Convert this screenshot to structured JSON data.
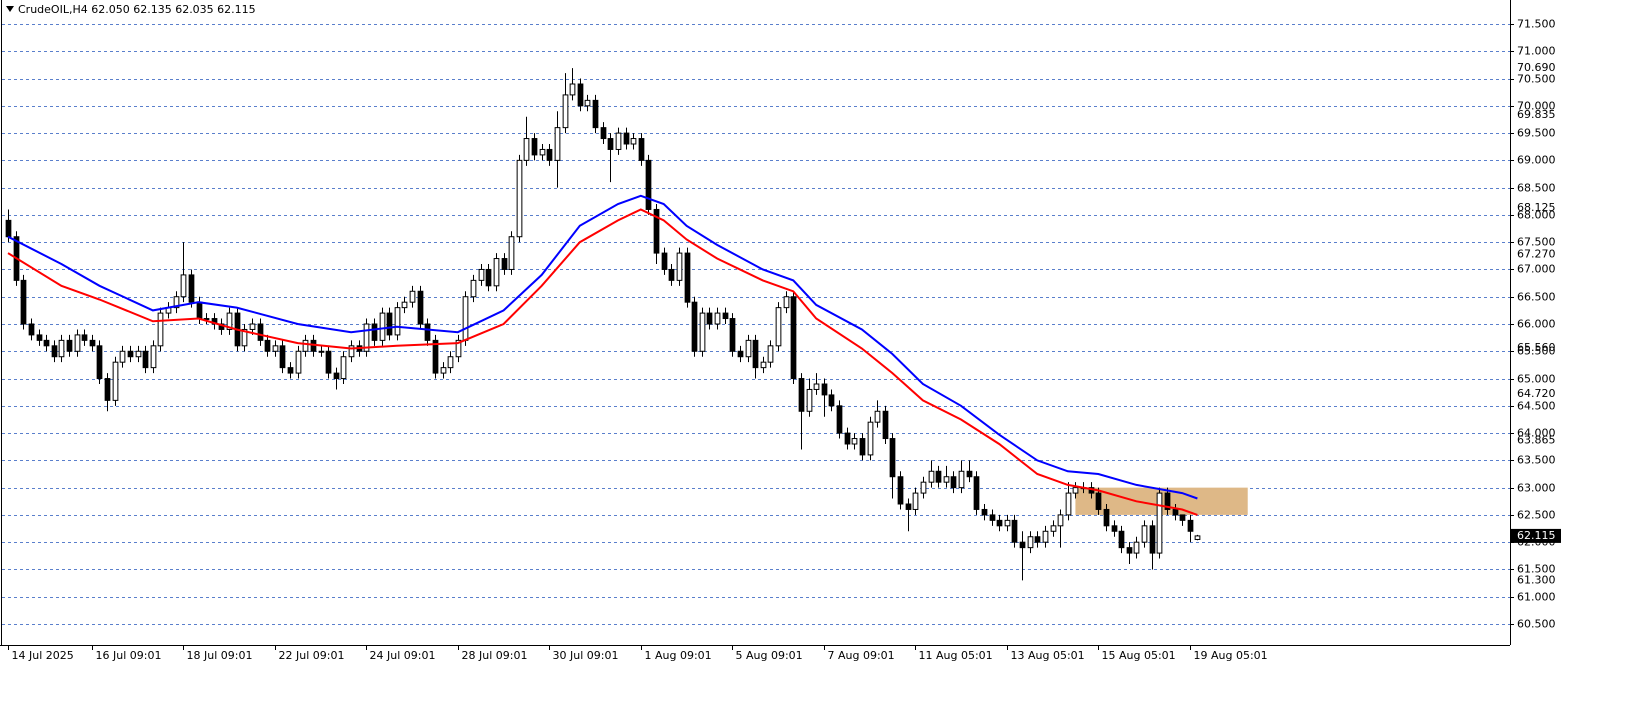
{
  "chart_data": {
    "type": "candlestick",
    "title": "CrudeOIL,H4 62.050 62.135 62.035 62.115",
    "open": [
      67.9,
      67.6,
      66.8,
      66.0,
      65.8,
      65.7,
      65.6,
      65.4,
      65.7,
      65.5,
      65.8,
      65.7,
      65.6,
      65.0,
      64.6,
      65.3,
      65.5,
      65.4,
      65.5,
      65.2,
      65.6,
      66.2,
      66.3,
      66.5,
      66.9,
      66.4,
      66.1,
      66.1,
      66.0,
      65.9,
      66.2,
      65.6,
      65.9,
      66.0,
      65.7,
      65.5,
      65.6,
      65.2,
      65.1,
      65.5,
      65.7,
      65.5,
      65.5,
      65.1,
      65.0,
      65.4,
      65.6,
      65.5,
      66.0,
      65.7,
      66.2,
      65.8,
      66.3,
      66.4,
      66.6,
      66.0,
      65.7,
      65.1,
      65.2,
      65.4,
      65.7,
      66.5,
      66.8,
      67.0,
      66.7,
      67.2,
      67.0,
      67.6,
      69.0,
      69.4,
      69.1,
      69.2,
      69.0,
      69.6,
      70.2,
      70.4,
      70.0,
      70.1,
      69.6,
      69.4,
      69.2,
      69.5,
      69.3,
      69.4,
      69.0,
      68.1,
      67.3,
      67.0,
      66.8,
      67.3,
      66.4,
      65.5,
      66.2,
      66.0,
      66.2,
      66.1,
      65.5,
      65.4,
      65.7,
      65.2,
      65.3,
      65.6,
      66.3,
      66.5,
      65.0,
      64.4,
      64.8,
      64.9,
      64.7,
      64.5,
      64.0,
      63.8,
      63.9,
      63.6,
      64.2,
      64.4,
      63.9,
      63.2,
      62.7,
      62.6,
      62.9,
      63.1,
      63.3,
      63.1,
      63.2,
      63.0,
      63.3,
      63.2,
      62.6,
      62.5,
      62.4,
      62.3,
      62.4,
      62.0,
      61.9,
      62.1,
      62.0,
      62.2,
      62.3,
      62.5,
      62.9,
      63.0,
      63.0,
      62.9,
      62.6,
      62.3,
      62.2,
      61.9,
      61.8,
      62.0,
      62.3,
      61.8,
      62.9,
      62.6,
      62.5,
      62.4,
      62.05
    ],
    "high": [
      68.1,
      67.7,
      66.9,
      66.1,
      65.9,
      65.8,
      65.7,
      65.8,
      65.8,
      65.9,
      65.9,
      65.8,
      65.7,
      65.1,
      65.4,
      65.6,
      65.6,
      65.6,
      65.6,
      65.7,
      66.3,
      66.4,
      66.6,
      67.5,
      67.0,
      66.5,
      66.2,
      66.2,
      66.1,
      66.3,
      66.3,
      66.0,
      66.1,
      66.1,
      65.8,
      65.7,
      65.7,
      65.3,
      65.6,
      65.8,
      65.8,
      65.6,
      65.6,
      65.2,
      65.5,
      65.7,
      65.7,
      66.1,
      66.1,
      66.3,
      66.3,
      66.4,
      66.5,
      66.7,
      66.7,
      66.1,
      65.8,
      65.3,
      65.5,
      65.8,
      66.6,
      66.9,
      67.1,
      67.1,
      67.3,
      67.3,
      67.7,
      69.1,
      69.8,
      69.5,
      69.3,
      69.3,
      69.9,
      70.6,
      70.69,
      70.5,
      70.2,
      70.2,
      69.7,
      69.5,
      69.6,
      69.6,
      69.5,
      69.5,
      69.1,
      68.2,
      67.4,
      67.1,
      67.4,
      67.4,
      66.5,
      66.3,
      66.3,
      66.3,
      66.3,
      66.2,
      65.6,
      65.8,
      65.8,
      65.4,
      65.7,
      66.4,
      66.6,
      66.6,
      65.1,
      65.0,
      65.1,
      65.0,
      64.8,
      64.6,
      64.1,
      64.0,
      64.0,
      64.3,
      64.6,
      64.5,
      64.0,
      63.3,
      62.8,
      63.0,
      63.2,
      63.5,
      63.4,
      63.4,
      63.3,
      63.5,
      63.5,
      63.3,
      62.7,
      62.6,
      62.5,
      62.5,
      62.5,
      62.2,
      62.2,
      62.2,
      62.3,
      62.4,
      62.6,
      63.1,
      63.1,
      63.1,
      63.1,
      63.0,
      62.7,
      62.4,
      62.3,
      62.0,
      62.1,
      62.4,
      62.4,
      63.0,
      63.0,
      62.7,
      62.5,
      62.5,
      62.135
    ],
    "low": [
      67.5,
      66.7,
      65.9,
      65.7,
      65.6,
      65.5,
      65.3,
      65.3,
      65.4,
      65.4,
      65.6,
      65.5,
      64.9,
      64.4,
      64.5,
      65.2,
      65.3,
      65.3,
      65.1,
      65.1,
      65.5,
      66.1,
      66.2,
      66.4,
      66.3,
      66.0,
      66.0,
      65.9,
      65.8,
      65.8,
      65.5,
      65.5,
      65.8,
      65.6,
      65.4,
      65.4,
      65.1,
      65.0,
      65.0,
      65.4,
      65.4,
      65.4,
      65.0,
      64.8,
      64.9,
      65.3,
      65.4,
      65.4,
      65.6,
      65.6,
      65.7,
      65.7,
      66.2,
      66.3,
      65.9,
      65.6,
      65.0,
      65.0,
      65.1,
      65.3,
      65.6,
      66.4,
      66.7,
      66.6,
      66.6,
      66.9,
      66.9,
      67.5,
      68.9,
      69.0,
      69.0,
      68.9,
      68.5,
      69.5,
      70.1,
      69.9,
      69.9,
      69.5,
      69.3,
      68.6,
      69.1,
      69.2,
      69.2,
      68.9,
      68.0,
      67.1,
      66.9,
      66.7,
      66.7,
      66.3,
      65.4,
      65.4,
      65.9,
      65.9,
      66.0,
      65.4,
      65.3,
      65.3,
      65.0,
      65.1,
      65.2,
      65.5,
      66.2,
      64.9,
      63.7,
      64.3,
      64.7,
      64.3,
      64.4,
      63.9,
      63.7,
      63.7,
      63.5,
      63.5,
      64.1,
      63.8,
      62.8,
      62.6,
      62.2,
      62.5,
      62.8,
      63.0,
      63.0,
      63.0,
      62.9,
      62.9,
      63.1,
      62.5,
      62.4,
      62.3,
      62.2,
      62.2,
      61.9,
      61.3,
      61.8,
      61.9,
      61.9,
      62.1,
      61.9,
      62.4,
      62.8,
      62.9,
      62.8,
      62.5,
      62.2,
      62.1,
      61.8,
      61.6,
      61.7,
      61.9,
      61.5,
      61.7,
      62.5,
      62.4,
      62.3,
      62.0,
      62.035
    ],
    "close": [
      67.6,
      66.8,
      66.0,
      65.8,
      65.7,
      65.6,
      65.4,
      65.7,
      65.5,
      65.8,
      65.7,
      65.6,
      65.0,
      64.6,
      65.3,
      65.5,
      65.4,
      65.5,
      65.2,
      65.6,
      66.2,
      66.3,
      66.5,
      66.9,
      66.4,
      66.1,
      66.1,
      66.0,
      65.9,
      66.2,
      65.6,
      65.9,
      66.0,
      65.7,
      65.5,
      65.6,
      65.2,
      65.1,
      65.5,
      65.7,
      65.5,
      65.5,
      65.1,
      65.0,
      65.4,
      65.6,
      65.5,
      66.0,
      65.7,
      66.2,
      65.8,
      66.3,
      66.4,
      66.6,
      66.0,
      65.7,
      65.1,
      65.2,
      65.4,
      65.7,
      66.5,
      66.8,
      67.0,
      66.7,
      67.2,
      67.0,
      67.6,
      69.0,
      69.4,
      69.1,
      69.2,
      69.0,
      69.6,
      70.2,
      70.4,
      70.0,
      70.1,
      69.6,
      69.4,
      69.2,
      69.5,
      69.3,
      69.4,
      69.0,
      68.1,
      67.3,
      67.0,
      66.8,
      67.3,
      66.4,
      65.5,
      66.2,
      66.0,
      66.2,
      66.1,
      65.5,
      65.4,
      65.7,
      65.2,
      65.3,
      65.6,
      66.3,
      66.5,
      65.0,
      64.4,
      64.8,
      64.9,
      64.7,
      64.5,
      64.0,
      63.8,
      63.9,
      63.6,
      64.2,
      64.4,
      63.9,
      63.2,
      62.7,
      62.6,
      62.9,
      63.1,
      63.3,
      63.1,
      63.2,
      63.0,
      63.3,
      63.2,
      62.6,
      62.5,
      62.4,
      62.3,
      62.4,
      62.0,
      61.9,
      62.1,
      62.0,
      62.2,
      62.3,
      62.5,
      62.9,
      63.0,
      63.0,
      62.9,
      62.6,
      62.3,
      62.2,
      61.9,
      61.8,
      62.0,
      62.3,
      61.8,
      62.9,
      62.6,
      62.5,
      62.4,
      62.2,
      62.115
    ],
    "bull_color": "#ffffff",
    "bear_color": "#000000",
    "overlays": [
      {
        "color": "#0000ff",
        "x": [
          0,
          7,
          12,
          19,
          25,
          30,
          38,
          45,
          51,
          59,
          65,
          70,
          75,
          80,
          83,
          86,
          89,
          93,
          99,
          103,
          106,
          112,
          116,
          120,
          125,
          130,
          135,
          139,
          143,
          148,
          154,
          156
        ],
        "values": [
          67.6,
          67.1,
          66.7,
          66.25,
          66.4,
          66.3,
          66.0,
          65.85,
          65.95,
          65.85,
          66.25,
          66.9,
          67.8,
          68.2,
          68.35,
          68.2,
          67.8,
          67.45,
          67.0,
          66.8,
          66.35,
          65.9,
          65.45,
          64.9,
          64.5,
          63.97,
          63.5,
          63.3,
          63.25,
          63.05,
          62.9,
          62.8
        ]
      },
      {
        "color": "#ff0000",
        "x": [
          0,
          7,
          12,
          19,
          25,
          30,
          38,
          45,
          51,
          59,
          65,
          70,
          75,
          80,
          83,
          86,
          89,
          93,
          99,
          103,
          106,
          112,
          116,
          120,
          125,
          130,
          135,
          139,
          143,
          148,
          154,
          156
        ],
        "values": [
          67.3,
          66.7,
          66.45,
          66.05,
          66.1,
          65.9,
          65.65,
          65.55,
          65.6,
          65.65,
          66.0,
          66.7,
          67.5,
          67.9,
          68.1,
          67.9,
          67.55,
          67.2,
          66.8,
          66.6,
          66.1,
          65.55,
          65.1,
          64.6,
          64.25,
          63.8,
          63.25,
          63.05,
          62.95,
          62.75,
          62.6,
          62.5
        ]
      }
    ],
    "zone": {
      "x": [
        140,
        162.6
      ],
      "y": [
        62.5,
        63.0
      ],
      "color": "#deb887"
    },
    "xlim": [
      -1.05,
      197
    ],
    "ylim": [
      60.115,
      71.94
    ],
    "xticks": [
      {
        "value": 0,
        "label": "14 Jul 2025"
      },
      {
        "value": 11,
        "label": "16 Jul 09:01"
      },
      {
        "value": 23,
        "label": "18 Jul 09:01"
      },
      {
        "value": 35,
        "label": "22 Jul 09:01"
      },
      {
        "value": 47,
        "label": "24 Jul 09:01"
      },
      {
        "value": 59,
        "label": "28 Jul 09:01"
      },
      {
        "value": 71,
        "label": "30 Jul 09:01"
      },
      {
        "value": 83,
        "label": "1 Aug 09:01"
      },
      {
        "value": 95,
        "label": "5 Aug 09:01"
      },
      {
        "value": 107,
        "label": "7 Aug 09:01"
      },
      {
        "value": 119,
        "label": "11 Aug 05:01"
      },
      {
        "value": 131,
        "label": "13 Aug 05:01"
      },
      {
        "value": 143,
        "label": "15 Aug 05:01"
      },
      {
        "value": 155,
        "label": "19 Aug 05:01"
      }
    ],
    "yticks": [
      {
        "value": 60.5,
        "label": "60.500"
      },
      {
        "value": 61,
        "label": "61.000"
      },
      {
        "value": 61.5,
        "label": "61.500"
      },
      {
        "value": 62,
        "label": "62.000"
      },
      {
        "value": 62.5,
        "label": "62.500"
      },
      {
        "value": 63,
        "label": "63.000"
      },
      {
        "value": 63.5,
        "label": "63.500"
      },
      {
        "value": 64,
        "label": "64.000"
      },
      {
        "value": 64.5,
        "label": "64.500"
      },
      {
        "value": 65,
        "label": "65.000"
      },
      {
        "value": 65.5,
        "label": "65.500"
      },
      {
        "value": 66,
        "label": "66.000"
      },
      {
        "value": 66.5,
        "label": "66.500"
      },
      {
        "value": 67,
        "label": "67.000"
      },
      {
        "value": 67.5,
        "label": "67.500"
      },
      {
        "value": 68,
        "label": "68.000"
      },
      {
        "value": 68.5,
        "label": "68.500"
      },
      {
        "value": 69,
        "label": "69.000"
      },
      {
        "value": 69.5,
        "label": "69.500"
      },
      {
        "value": 70,
        "label": "70.000"
      },
      {
        "value": 70.5,
        "label": "70.500"
      },
      {
        "value": 71,
        "label": "71.000"
      },
      {
        "value": 71.5,
        "label": "71.500"
      }
    ],
    "price_levels": [
      {
        "value": 70.69,
        "label": "70.690"
      },
      {
        "value": 69.835,
        "label": "69.835"
      },
      {
        "value": 68.125,
        "label": "68.125"
      },
      {
        "value": 67.27,
        "label": "67.270"
      },
      {
        "value": 65.56,
        "label": "65.560"
      },
      {
        "value": 64.72,
        "label": "64.720"
      },
      {
        "value": 63.865,
        "label": "63.865"
      },
      {
        "value": 61.3,
        "label": "61.300"
      }
    ],
    "current_price": {
      "value": 62.115,
      "label": "62.115"
    },
    "grid": true,
    "grid_color": "#5a7fcc"
  }
}
